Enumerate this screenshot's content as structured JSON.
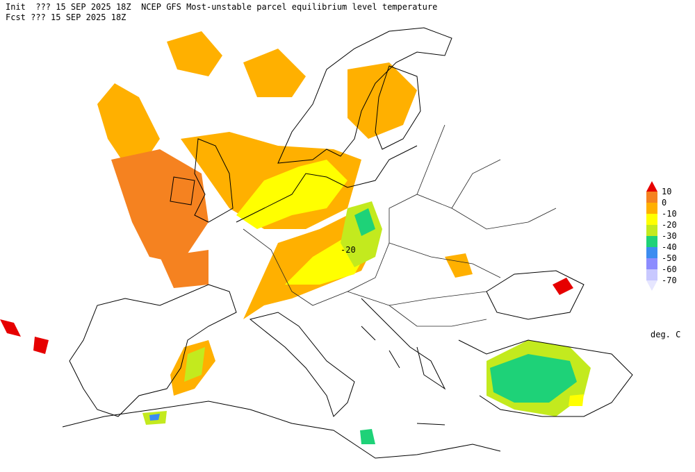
{
  "header": {
    "line1": "Init  ??? 15 SEP 2025 18Z  NCEP GFS Most-unstable parcel equilibrium level temperature",
    "line2": "Fcst ??? 15 SEP 2025 18Z"
  },
  "legend": {
    "levels": [
      10,
      0,
      -10,
      -20,
      -30,
      -40,
      -50,
      -60,
      -70
    ],
    "colors": [
      "#e60000",
      "#f58220",
      "#ffb000",
      "#ffff00",
      "#c3ea1e",
      "#1ed278",
      "#3c8cf0",
      "#8c8cff",
      "#c8c8ff",
      "#e6e6ff"
    ],
    "unit": "deg. C"
  },
  "contour_labels": [
    "-20"
  ]
}
